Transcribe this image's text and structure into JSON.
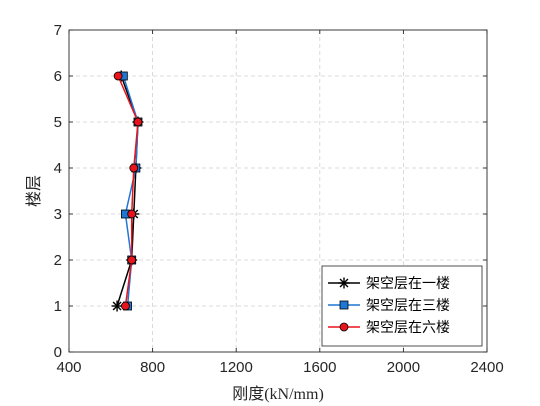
{
  "chart_data": {
    "type": "line",
    "orientation": "horizontal-values",
    "xlabel": "刚度(kN/mm)",
    "ylabel": "楼层",
    "xlim": [
      400,
      2400
    ],
    "ylim": [
      0,
      7
    ],
    "xticks": [
      400,
      800,
      1200,
      1600,
      2000,
      2400
    ],
    "yticks": [
      0,
      1,
      2,
      3,
      4,
      5,
      6,
      7
    ],
    "grid": true,
    "legend_position": "bottom-right",
    "series": [
      {
        "name": "架空层在一楼",
        "color": "#000000",
        "marker": "asterisk",
        "floors": [
          1,
          2,
          3,
          4,
          5,
          6
        ],
        "values": [
          630,
          700,
          710,
          720,
          730,
          650
        ]
      },
      {
        "name": "架空层在三楼",
        "color": "#1f77d4",
        "marker": "square",
        "floors": [
          1,
          2,
          3,
          4,
          5,
          6
        ],
        "values": [
          680,
          700,
          670,
          720,
          730,
          660
        ]
      },
      {
        "name": "架空层在六楼",
        "color": "#e8131b",
        "marker": "circle",
        "floors": [
          1,
          2,
          3,
          4,
          5,
          6
        ],
        "values": [
          670,
          700,
          700,
          710,
          730,
          635
        ]
      }
    ]
  }
}
